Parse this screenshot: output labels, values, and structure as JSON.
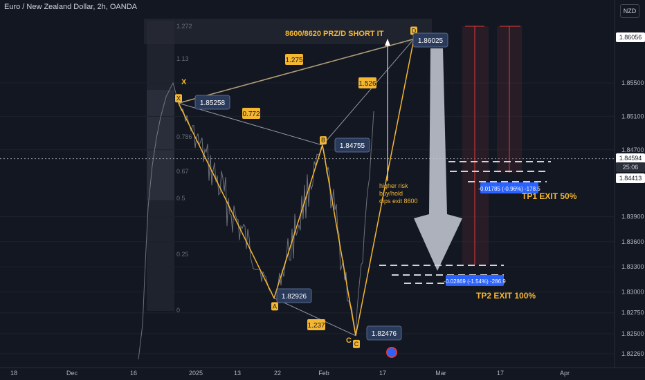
{
  "header": {
    "title": "Euro / New Zealand Dollar, 2h, OANDA",
    "currency": "NZD"
  },
  "price_scale": {
    "ticks": [
      "1.85500",
      "1.85100",
      "1.84700",
      "1.83900",
      "1.83600",
      "1.83300",
      "1.83000",
      "1.82750",
      "1.82500",
      "1.82260"
    ],
    "tags": [
      {
        "text": "1.86056",
        "bg": "#ffffff",
        "fg": "#131722"
      },
      {
        "text": "1.84594",
        "bg": "#ffffff",
        "fg": "#131722"
      },
      {
        "text": "25:06",
        "bg": "#2a2e39",
        "fg": "#d1d4dc"
      },
      {
        "text": "1.84413",
        "bg": "#ffffff",
        "fg": "#131722"
      }
    ]
  },
  "time_axis": {
    "labels": [
      "18",
      "Dec",
      "16",
      "2025",
      "13",
      "22",
      "Feb",
      "17",
      "Mar",
      "17",
      "Apr"
    ]
  },
  "fib_levels": [
    "1.272",
    "1.13",
    "0.786",
    "0.67",
    "0.5",
    "0.25",
    "0"
  ],
  "pattern": {
    "points": [
      {
        "label": "X",
        "value": 1.85258
      },
      {
        "label": "A",
        "value": 1.82926
      },
      {
        "label": "B",
        "value": 1.84755
      },
      {
        "label": "C",
        "value": 1.82476
      },
      {
        "label": "D",
        "value": 1.86025
      }
    ],
    "extra_label": "X",
    "ratios": [
      "0.772",
      "1.275",
      "1.526",
      "1.237"
    ]
  },
  "annotations": {
    "prz": "8600/8620 PRZ/D SHORT IT",
    "note_lines": [
      "higher risk",
      "buy/hold",
      "dips exit 8600"
    ],
    "tp1": "TP1 EXIT 50%",
    "tp2": "TP2 EXIT 100%",
    "tp1_box": "-0.01785 (-0.96%) -178.5",
    "tp2_box": "-0.02869 (-1.54%) -286.9"
  },
  "colors": {
    "background": "#131722",
    "pattern": "#f5b731",
    "label_bg": "#f5b731",
    "price_box": "#2a3a5a",
    "tp_box": "#2962ff",
    "grid": "#1e222d"
  },
  "chart_data": {
    "type": "line",
    "title": "Euro / New Zealand Dollar, 2h, OANDA",
    "pattern_points": {
      "X": 1.85258,
      "A": 1.82926,
      "B": 1.84755,
      "C": 1.82476,
      "D": 1.86025
    },
    "last_price": 1.84594,
    "y_ticks": [
      1.855,
      1.851,
      1.847,
      1.839,
      1.836,
      1.833,
      1.83,
      1.8275,
      1.825,
      1.8226
    ],
    "x_ticks": [
      "18",
      "Dec",
      "16",
      "2025",
      "13",
      "22",
      "Feb",
      "17",
      "Mar",
      "17",
      "Apr"
    ]
  }
}
